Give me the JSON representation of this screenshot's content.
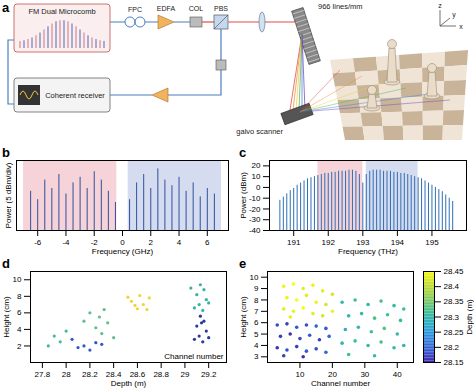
{
  "diagram": {
    "label": "a",
    "comb": "FM Dual Microcomb",
    "receiver": "Coherent receiver",
    "fpc": "FPC",
    "edfa": "EDFA",
    "col": "COL",
    "pbs": "PBS",
    "grating": "966 lines/mm",
    "scanner": "galvo scanner",
    "axes": [
      "x",
      "y",
      "z"
    ]
  },
  "chart_data": [
    {
      "type": "stem",
      "title": "b",
      "xlabel": "Frequency (GHz)",
      "ylabel": "Power (5 dBm/div)",
      "x": [
        -6.5,
        -6,
        -5.5,
        -5,
        -4.5,
        -4,
        -3.5,
        -3,
        -2.5,
        -2,
        -1.5,
        -1,
        -0.5,
        0.5,
        1,
        1.5,
        2,
        2.5,
        3,
        3.5,
        4,
        4.5,
        5,
        5.5,
        6,
        6.5
      ],
      "values": [
        28,
        22,
        36,
        30,
        40,
        26,
        34,
        38,
        30,
        42,
        36,
        28,
        20,
        22,
        34,
        40,
        30,
        44,
        36,
        32,
        38,
        28,
        34,
        24,
        30,
        26
      ],
      "color": "#2f4f9e",
      "xlim": [
        -7.5,
        7.5
      ],
      "xticks": [
        -6,
        -4,
        -2,
        0,
        2,
        4,
        6
      ],
      "ylim": [
        0,
        50
      ],
      "tick_labels": "x",
      "bands": [
        {
          "x1": -7,
          "x2": -0.4,
          "color": "#f6d3d8"
        },
        {
          "x1": 0.4,
          "x2": 7,
          "color": "#d6dcf0"
        }
      ]
    },
    {
      "type": "stem",
      "title": "c",
      "xlabel": "Frequency (THz)",
      "ylabel": "Power (dBm)",
      "x": [
        190.6,
        190.7,
        190.8,
        190.9,
        191,
        191.1,
        191.2,
        191.3,
        191.4,
        191.5,
        191.6,
        191.7,
        191.8,
        191.9,
        192,
        192.1,
        192.2,
        192.3,
        192.4,
        192.5,
        192.6,
        192.7,
        192.8,
        192.9,
        193,
        193.1,
        193.2,
        193.3,
        193.4,
        193.5,
        193.6,
        193.7,
        193.8,
        193.9,
        194,
        194.1,
        194.2,
        194.3,
        194.4,
        194.5,
        194.6,
        194.7,
        194.8,
        194.9,
        195,
        195.1,
        195.2,
        195.3,
        195.4,
        195.5,
        195.6
      ],
      "values": [
        -12,
        -9,
        -6,
        -3,
        -1,
        2,
        4,
        6,
        8,
        9,
        10,
        11,
        12,
        13,
        13,
        14,
        14,
        15,
        15,
        15,
        16,
        16,
        15,
        12,
        4,
        12,
        15,
        16,
        16,
        16,
        15,
        15,
        15,
        14,
        14,
        13,
        13,
        12,
        11,
        10,
        9,
        8,
        6,
        4,
        2,
        0,
        -2,
        -4,
        -7,
        -10,
        -13
      ],
      "color": "#2f6fb5",
      "xlim": [
        190.3,
        196
      ],
      "xticks": [
        191,
        192,
        193,
        194,
        195
      ],
      "ylim": [
        -40,
        25
      ],
      "yticks": [
        -40,
        -30,
        -20,
        -10,
        0,
        10,
        20
      ],
      "bands": [
        {
          "x1": 191.7,
          "x2": 193.0,
          "color": "#f6d3d8"
        },
        {
          "x1": 193.1,
          "x2": 194.6,
          "color": "#d6dcf0"
        }
      ]
    },
    {
      "type": "scatter",
      "title": "d",
      "xlabel": "Depth (m)",
      "ylabel": "Height (cm)",
      "zlabel": "Channel number",
      "xlim": [
        27.7,
        29.35
      ],
      "xticks": [
        27.8,
        28,
        28.2,
        28.4,
        28.6,
        28.8,
        29,
        29.2
      ],
      "ylim": [
        0,
        11
      ],
      "yticks": [
        2,
        4,
        6,
        8,
        10
      ],
      "series": [
        {
          "color": "#2b3a9a",
          "values": [
            [
              29.15,
              2.5
            ],
            [
              29.12,
              3.2
            ],
            [
              29.18,
              3.8
            ],
            [
              29.1,
              4.4
            ],
            [
              29.16,
              5.0
            ],
            [
              29.13,
              5.6
            ],
            [
              29.2,
              3.0
            ],
            [
              29.08,
              2.8
            ],
            [
              29.14,
              4.8
            ]
          ]
        },
        {
          "color": "#35b3a3",
          "values": [
            [
              29.15,
              6.3
            ],
            [
              29.12,
              7.0
            ],
            [
              29.18,
              7.6
            ],
            [
              29.1,
              8.2
            ],
            [
              29.16,
              8.8
            ],
            [
              29.13,
              9.4
            ],
            [
              29.2,
              7.2
            ],
            [
              29.08,
              6.6
            ],
            [
              29.05,
              9.0
            ]
          ]
        },
        {
          "color": "#f2d43a",
          "values": [
            [
              28.6,
              6.5
            ],
            [
              28.65,
              7.0
            ],
            [
              28.55,
              7.4
            ],
            [
              28.7,
              7.8
            ],
            [
              28.62,
              8.1
            ],
            [
              28.58,
              6.9
            ],
            [
              28.68,
              6.4
            ],
            [
              28.52,
              7.9
            ]
          ]
        },
        {
          "color": "#5fbf8c",
          "values": [
            [
              28.3,
              3.5
            ],
            [
              28.25,
              4.2
            ],
            [
              28.35,
              4.8
            ],
            [
              28.28,
              5.5
            ],
            [
              28.2,
              6.0
            ],
            [
              28.32,
              6.4
            ],
            [
              28.4,
              3.0
            ],
            [
              28.15,
              5.0
            ]
          ]
        },
        {
          "color": "#2f58c9",
          "values": [
            [
              28.2,
              1.5
            ],
            [
              28.15,
              2.0
            ],
            [
              28.25,
              2.4
            ],
            [
              28.1,
              1.8
            ],
            [
              28.3,
              2.2
            ],
            [
              28.05,
              2.8
            ]
          ]
        },
        {
          "color": "#3fb9a8",
          "values": [
            [
              27.95,
              2.5
            ],
            [
              27.9,
              3.2
            ],
            [
              28.0,
              3.8
            ],
            [
              27.85,
              2.0
            ]
          ]
        }
      ]
    },
    {
      "type": "scatter",
      "title": "e",
      "xlabel": "Channel number",
      "ylabel": "Height (cm)",
      "xlim": [
        0,
        45
      ],
      "xticks": [
        10,
        20,
        30,
        40
      ],
      "ylim": [
        2.5,
        10.5
      ],
      "yticks": [
        3,
        4,
        5,
        6,
        7,
        8,
        9,
        10
      ],
      "points": [
        [
          5,
          9.2,
          28.44
        ],
        [
          8,
          9.4,
          28.45
        ],
        [
          11,
          9.0,
          28.43
        ],
        [
          14,
          9.3,
          28.44
        ],
        [
          17,
          8.8,
          28.43
        ],
        [
          20,
          8.5,
          28.42
        ],
        [
          6,
          8.2,
          28.44
        ],
        [
          9,
          8.0,
          28.45
        ],
        [
          12,
          8.4,
          28.43
        ],
        [
          15,
          7.8,
          28.44
        ],
        [
          18,
          7.6,
          28.42
        ],
        [
          5,
          7.2,
          28.43
        ],
        [
          8,
          7.0,
          28.44
        ],
        [
          11,
          7.3,
          28.45
        ],
        [
          14,
          6.8,
          28.43
        ],
        [
          17,
          6.6,
          28.42
        ],
        [
          20,
          7.0,
          28.44
        ],
        [
          7,
          6.5,
          28.43
        ],
        [
          3,
          5.8,
          28.18
        ],
        [
          6,
          5.9,
          28.17
        ],
        [
          9,
          5.6,
          28.19
        ],
        [
          12,
          5.8,
          28.18
        ],
        [
          15,
          5.7,
          28.2
        ],
        [
          18,
          5.5,
          28.19
        ],
        [
          4,
          4.8,
          28.17
        ],
        [
          7,
          5.0,
          28.16
        ],
        [
          10,
          4.6,
          28.18
        ],
        [
          13,
          4.9,
          28.19
        ],
        [
          16,
          4.5,
          28.17
        ],
        [
          19,
          4.8,
          28.2
        ],
        [
          3,
          3.8,
          28.16
        ],
        [
          6,
          3.6,
          28.18
        ],
        [
          9,
          3.9,
          28.17
        ],
        [
          12,
          3.5,
          28.19
        ],
        [
          15,
          3.7,
          28.18
        ],
        [
          18,
          3.4,
          28.2
        ],
        [
          5,
          3.1,
          28.17
        ],
        [
          11,
          3.0,
          28.16
        ],
        [
          23,
          7.8,
          28.3
        ],
        [
          27,
          8.0,
          28.31
        ],
        [
          31,
          7.6,
          28.29
        ],
        [
          35,
          7.9,
          28.32
        ],
        [
          39,
          7.5,
          28.3
        ],
        [
          42,
          7.2,
          28.31
        ],
        [
          25,
          6.6,
          28.29
        ],
        [
          29,
          6.8,
          28.3
        ],
        [
          33,
          6.4,
          28.32
        ],
        [
          37,
          6.7,
          28.31
        ],
        [
          41,
          6.2,
          28.3
        ],
        [
          24,
          5.4,
          28.28
        ],
        [
          28,
          5.6,
          28.3
        ],
        [
          32,
          5.2,
          28.31
        ],
        [
          36,
          5.5,
          28.33
        ],
        [
          40,
          5.0,
          28.3
        ],
        [
          23,
          4.2,
          28.29
        ],
        [
          27,
          4.4,
          28.31
        ],
        [
          31,
          4.0,
          28.3
        ],
        [
          35,
          4.3,
          28.32
        ],
        [
          39,
          3.8,
          28.3
        ],
        [
          42,
          4.0,
          28.29
        ],
        [
          25,
          3.2,
          28.31
        ],
        [
          33,
          3.1,
          28.3
        ]
      ],
      "colorbar": {
        "label": "Depth (m)",
        "lim": [
          28.15,
          28.45
        ],
        "ticks": [
          28.15,
          28.2,
          28.25,
          28.3,
          28.35,
          28.4,
          28.45
        ]
      }
    }
  ]
}
